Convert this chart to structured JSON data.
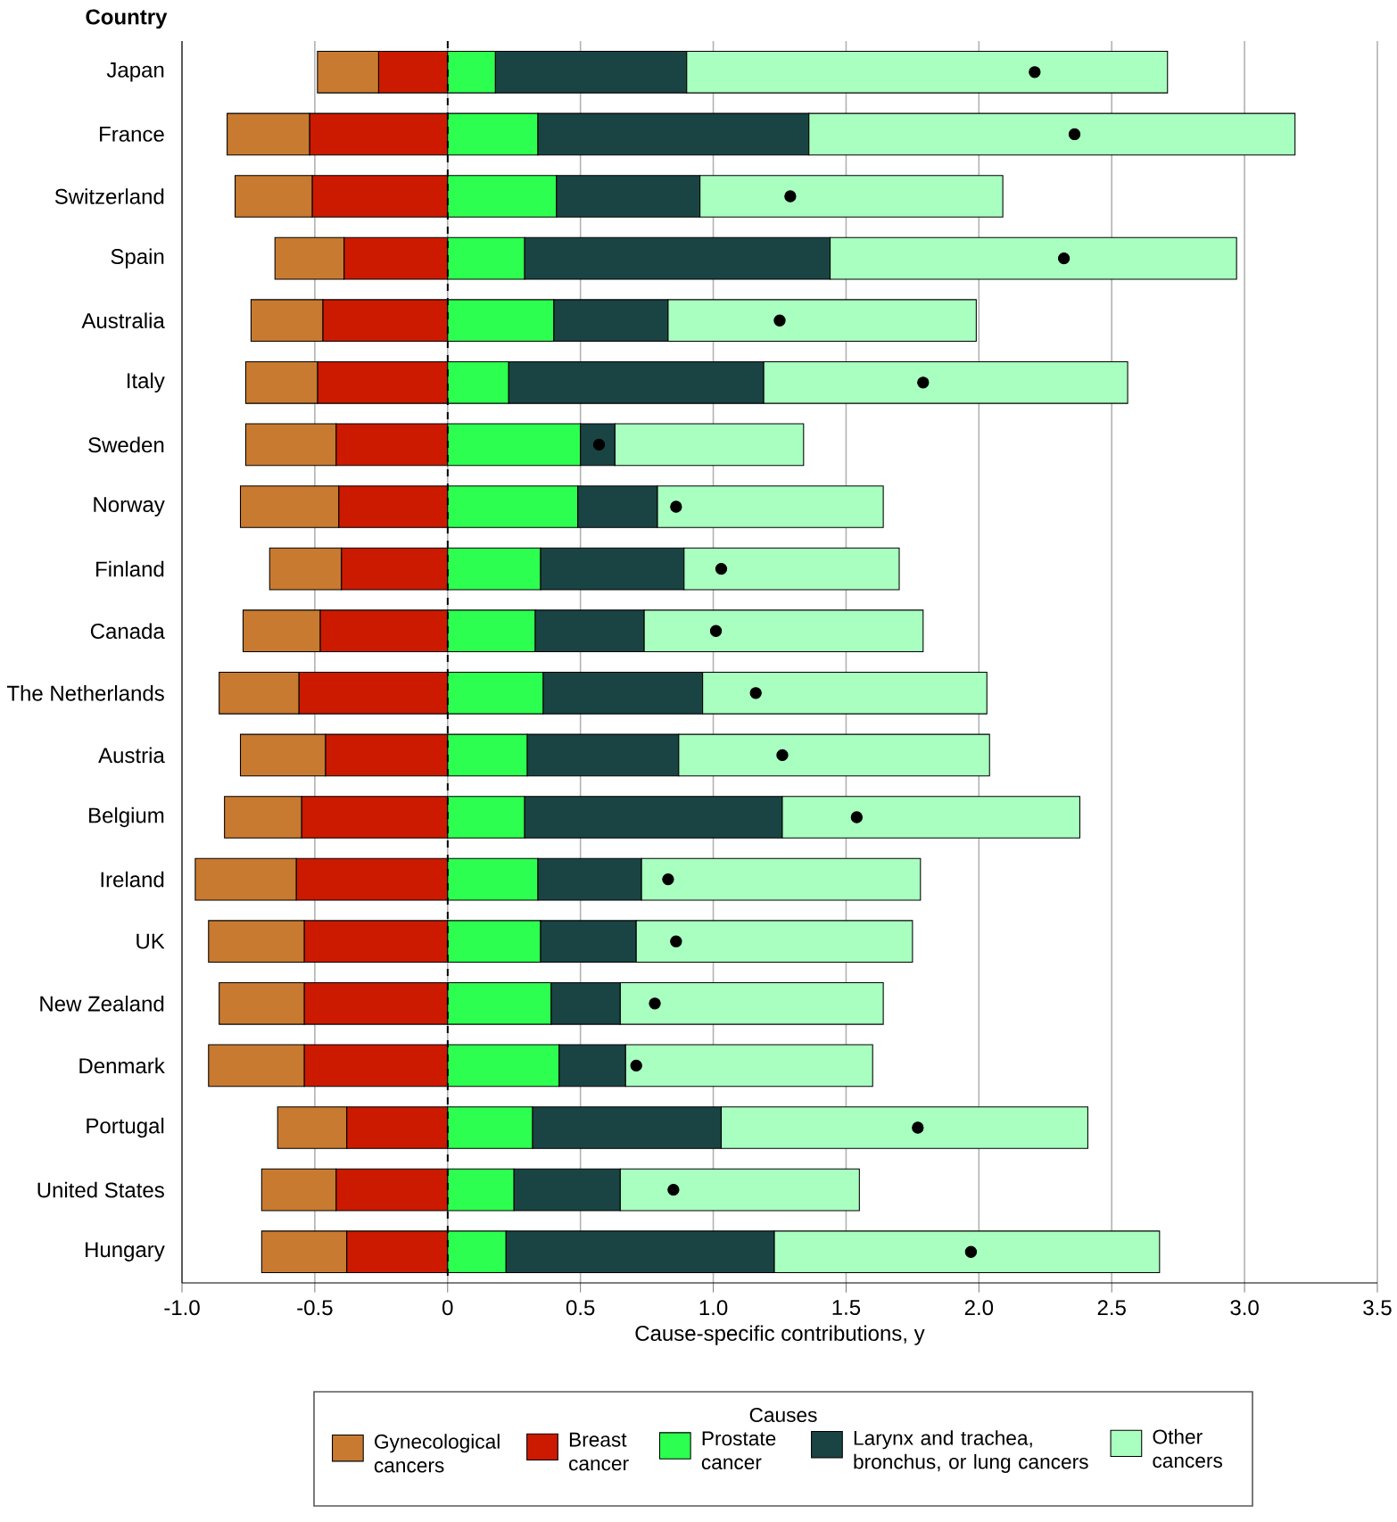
{
  "chart_data": {
    "type": "bar",
    "orientation": "horizontal",
    "stacked": true,
    "ylabel": "Country",
    "xlabel": "Cause-specific contributions, y",
    "legend_title": "Causes",
    "categories": [
      "Japan",
      "France",
      "Switzerland",
      "Spain",
      "Australia",
      "Italy",
      "Sweden",
      "Norway",
      "Finland",
      "Canada",
      "The Netherlands",
      "Austria",
      "Belgium",
      "Ireland",
      "UK",
      "New Zealand",
      "Denmark",
      "Portugal",
      "United States",
      "Hungary"
    ],
    "series": [
      {
        "name": "Breast cancer",
        "color": "#cc1a00",
        "values": [
          -0.26,
          -0.52,
          -0.51,
          -0.39,
          -0.47,
          -0.49,
          -0.42,
          -0.41,
          -0.4,
          -0.48,
          -0.56,
          -0.46,
          -0.55,
          -0.57,
          -0.54,
          -0.54,
          -0.54,
          -0.38,
          -0.42,
          -0.38
        ]
      },
      {
        "name": "Gynecological cancers",
        "color": "#c87a30",
        "values": [
          -0.23,
          -0.31,
          -0.29,
          -0.26,
          -0.27,
          -0.27,
          -0.34,
          -0.37,
          -0.27,
          -0.29,
          -0.3,
          -0.32,
          -0.29,
          -0.38,
          -0.36,
          -0.32,
          -0.36,
          -0.26,
          -0.28,
          -0.32
        ]
      },
      {
        "name": "Prostate cancer",
        "color": "#2dff50",
        "values": [
          0.18,
          0.34,
          0.41,
          0.29,
          0.4,
          0.23,
          0.5,
          0.49,
          0.35,
          0.33,
          0.36,
          0.3,
          0.29,
          0.34,
          0.35,
          0.39,
          0.42,
          0.32,
          0.25,
          0.22
        ]
      },
      {
        "name": "Larynx and trachea, bronchus, or lung cancers",
        "color": "#1a4444",
        "values": [
          0.72,
          1.02,
          0.54,
          1.15,
          0.43,
          0.96,
          0.13,
          0.3,
          0.54,
          0.41,
          0.6,
          0.57,
          0.97,
          0.39,
          0.36,
          0.26,
          0.25,
          0.71,
          0.4,
          1.01
        ]
      },
      {
        "name": "Other cancers",
        "color": "#a8ffc0",
        "values": [
          1.81,
          1.83,
          1.14,
          1.53,
          1.16,
          1.37,
          0.71,
          0.85,
          0.81,
          1.05,
          1.07,
          1.17,
          1.12,
          1.05,
          1.04,
          0.99,
          0.93,
          1.38,
          0.9,
          1.45
        ]
      },
      {
        "type": "scatter",
        "marker": "circle",
        "color": "#000000",
        "values": [
          2.21,
          2.36,
          1.29,
          2.32,
          1.25,
          1.79,
          0.57,
          0.86,
          1.03,
          1.01,
          1.16,
          1.26,
          1.54,
          0.83,
          0.86,
          0.78,
          0.71,
          1.77,
          0.85,
          1.97
        ]
      }
    ],
    "xlim": [
      -1,
      3.5
    ],
    "xticks": [
      {
        "value": -1,
        "label": "-1.0"
      },
      {
        "value": -0.5,
        "label": "-0.5"
      },
      0,
      0.5,
      {
        "value": 1,
        "label": "1.0"
      },
      1.5,
      {
        "value": 2,
        "label": "2.0"
      },
      2.5,
      {
        "value": 3,
        "label": "3.0"
      },
      3.5
    ],
    "grid": "x",
    "legend": "bottom",
    "ref_lines": [
      {
        "axis": "x",
        "value": 0,
        "color": "#000000",
        "line_style": "dashed"
      }
    ]
  }
}
